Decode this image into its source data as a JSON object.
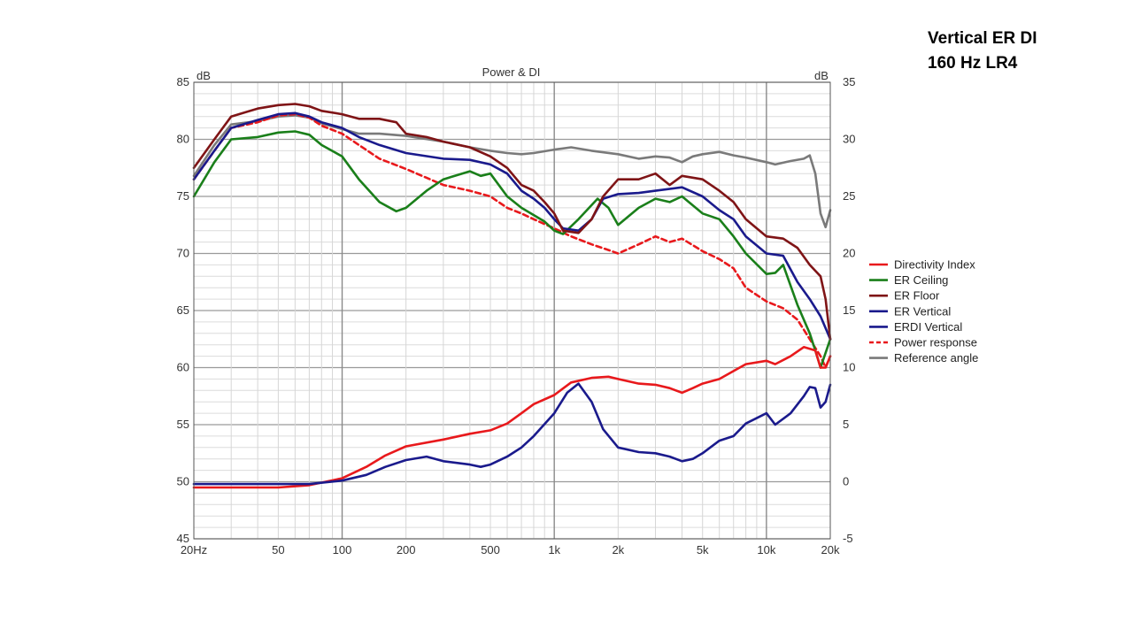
{
  "slide": {
    "title_line1": "Vertical ER DI",
    "title_line2": "160 Hz LR4"
  },
  "chart_data": {
    "type": "line",
    "title": "Power & DI",
    "xlabel": "",
    "ylabel_left": "dB",
    "ylabel_right": "dB",
    "x_scale": "log",
    "xlim": [
      20,
      20000
    ],
    "ylim_left": [
      45,
      85
    ],
    "ylim_right": [
      -5,
      35
    ],
    "x_ticks": [
      {
        "v": 20,
        "label": "20Hz"
      },
      {
        "v": 50,
        "label": "50"
      },
      {
        "v": 100,
        "label": "100"
      },
      {
        "v": 200,
        "label": "200"
      },
      {
        "v": 500,
        "label": "500"
      },
      {
        "v": 1000,
        "label": "1k"
      },
      {
        "v": 2000,
        "label": "2k"
      },
      {
        "v": 5000,
        "label": "5k"
      },
      {
        "v": 10000,
        "label": "10k"
      },
      {
        "v": 20000,
        "label": "20k"
      }
    ],
    "y_ticks_left": [
      45,
      50,
      55,
      60,
      65,
      70,
      75,
      80,
      85
    ],
    "y_ticks_right": [
      -5,
      0,
      5,
      10,
      15,
      20,
      25,
      30,
      35
    ],
    "grid": true,
    "legend_position": "right",
    "series": [
      {
        "name": "Directivity Index",
        "color": "#e8191c",
        "dash": false,
        "axis": "right",
        "points": [
          [
            20,
            -0.5
          ],
          [
            50,
            -0.5
          ],
          [
            70,
            -0.3
          ],
          [
            100,
            0.3
          ],
          [
            130,
            1.3
          ],
          [
            160,
            2.3
          ],
          [
            200,
            3.1
          ],
          [
            300,
            3.7
          ],
          [
            400,
            4.2
          ],
          [
            500,
            4.5
          ],
          [
            600,
            5.1
          ],
          [
            700,
            6.0
          ],
          [
            800,
            6.8
          ],
          [
            1000,
            7.6
          ],
          [
            1200,
            8.7
          ],
          [
            1500,
            9.1
          ],
          [
            1800,
            9.2
          ],
          [
            2000,
            9.0
          ],
          [
            2500,
            8.6
          ],
          [
            3000,
            8.5
          ],
          [
            3500,
            8.2
          ],
          [
            4000,
            7.8
          ],
          [
            4500,
            8.2
          ],
          [
            5000,
            8.6
          ],
          [
            6000,
            9.0
          ],
          [
            7000,
            9.7
          ],
          [
            8000,
            10.3
          ],
          [
            10000,
            10.6
          ],
          [
            11000,
            10.3
          ],
          [
            13000,
            11.0
          ],
          [
            15000,
            11.8
          ],
          [
            17000,
            11.5
          ],
          [
            18000,
            10.0
          ],
          [
            19000,
            10.0
          ],
          [
            20000,
            11.0
          ]
        ]
      },
      {
        "name": "ER Ceiling",
        "color": "#1a7f1a",
        "dash": false,
        "axis": "left",
        "points": [
          [
            20,
            75
          ],
          [
            25,
            78
          ],
          [
            30,
            80
          ],
          [
            40,
            80.2
          ],
          [
            50,
            80.6
          ],
          [
            60,
            80.7
          ],
          [
            70,
            80.4
          ],
          [
            80,
            79.5
          ],
          [
            100,
            78.5
          ],
          [
            120,
            76.5
          ],
          [
            150,
            74.5
          ],
          [
            180,
            73.7
          ],
          [
            200,
            74
          ],
          [
            250,
            75.5
          ],
          [
            300,
            76.5
          ],
          [
            400,
            77.2
          ],
          [
            450,
            76.8
          ],
          [
            500,
            77
          ],
          [
            600,
            75
          ],
          [
            700,
            74
          ],
          [
            900,
            72.8
          ],
          [
            1000,
            72
          ],
          [
            1100,
            71.7
          ],
          [
            1300,
            73
          ],
          [
            1600,
            74.8
          ],
          [
            1800,
            74
          ],
          [
            2000,
            72.5
          ],
          [
            2500,
            74
          ],
          [
            3000,
            74.8
          ],
          [
            3500,
            74.5
          ],
          [
            4000,
            75
          ],
          [
            5000,
            73.5
          ],
          [
            6000,
            73
          ],
          [
            7000,
            71.5
          ],
          [
            8000,
            70
          ],
          [
            10000,
            68.2
          ],
          [
            11000,
            68.3
          ],
          [
            12000,
            69
          ],
          [
            14000,
            65.5
          ],
          [
            16000,
            63
          ],
          [
            17000,
            61.5
          ],
          [
            18000,
            60
          ],
          [
            20000,
            62.5
          ]
        ]
      },
      {
        "name": "ER Floor",
        "color": "#7f1416",
        "dash": false,
        "axis": "left",
        "points": [
          [
            20,
            77.5
          ],
          [
            25,
            80
          ],
          [
            30,
            82
          ],
          [
            40,
            82.7
          ],
          [
            50,
            83
          ],
          [
            60,
            83.1
          ],
          [
            70,
            82.9
          ],
          [
            80,
            82.5
          ],
          [
            100,
            82.2
          ],
          [
            120,
            81.8
          ],
          [
            150,
            81.8
          ],
          [
            180,
            81.5
          ],
          [
            200,
            80.5
          ],
          [
            250,
            80.2
          ],
          [
            300,
            79.8
          ],
          [
            400,
            79.3
          ],
          [
            500,
            78.5
          ],
          [
            600,
            77.5
          ],
          [
            700,
            76
          ],
          [
            800,
            75.5
          ],
          [
            900,
            74.5
          ],
          [
            1000,
            73.5
          ],
          [
            1100,
            72
          ],
          [
            1300,
            71.8
          ],
          [
            1500,
            73
          ],
          [
            1700,
            75
          ],
          [
            2000,
            76.5
          ],
          [
            2500,
            76.5
          ],
          [
            3000,
            77
          ],
          [
            3500,
            76
          ],
          [
            4000,
            76.8
          ],
          [
            5000,
            76.5
          ],
          [
            6000,
            75.5
          ],
          [
            7000,
            74.5
          ],
          [
            8000,
            73
          ],
          [
            10000,
            71.5
          ],
          [
            12000,
            71.3
          ],
          [
            14000,
            70.5
          ],
          [
            16000,
            69
          ],
          [
            18000,
            68
          ],
          [
            19000,
            66
          ],
          [
            20000,
            62.5
          ]
        ]
      },
      {
        "name": "ER Vertical",
        "color": "#1a1a8c",
        "dash": false,
        "axis": "left",
        "points": [
          [
            20,
            76.5
          ],
          [
            25,
            79
          ],
          [
            30,
            81
          ],
          [
            40,
            81.7
          ],
          [
            50,
            82.2
          ],
          [
            60,
            82.3
          ],
          [
            70,
            82
          ],
          [
            80,
            81.5
          ],
          [
            100,
            81
          ],
          [
            120,
            80.2
          ],
          [
            150,
            79.5
          ],
          [
            200,
            78.8
          ],
          [
            300,
            78.3
          ],
          [
            400,
            78.2
          ],
          [
            500,
            77.8
          ],
          [
            600,
            77
          ],
          [
            700,
            75.5
          ],
          [
            800,
            74.8
          ],
          [
            900,
            74
          ],
          [
            1000,
            73
          ],
          [
            1100,
            72.2
          ],
          [
            1300,
            72
          ],
          [
            1500,
            73
          ],
          [
            1700,
            74.8
          ],
          [
            2000,
            75.2
          ],
          [
            2500,
            75.3
          ],
          [
            3000,
            75.5
          ],
          [
            4000,
            75.8
          ],
          [
            5000,
            75
          ],
          [
            6000,
            73.8
          ],
          [
            7000,
            73
          ],
          [
            8000,
            71.5
          ],
          [
            10000,
            70
          ],
          [
            12000,
            69.8
          ],
          [
            14000,
            67.5
          ],
          [
            16000,
            66
          ],
          [
            18000,
            64.5
          ],
          [
            20000,
            62.5
          ]
        ]
      },
      {
        "name": "ERDI Vertical",
        "color": "#1a1a8c",
        "dash": false,
        "axis": "right",
        "points": [
          [
            20,
            -0.2
          ],
          [
            70,
            -0.2
          ],
          [
            100,
            0.1
          ],
          [
            130,
            0.6
          ],
          [
            160,
            1.3
          ],
          [
            200,
            1.9
          ],
          [
            250,
            2.2
          ],
          [
            300,
            1.8
          ],
          [
            400,
            1.5
          ],
          [
            450,
            1.3
          ],
          [
            500,
            1.5
          ],
          [
            600,
            2.2
          ],
          [
            700,
            3.0
          ],
          [
            800,
            4.0
          ],
          [
            1000,
            6.0
          ],
          [
            1150,
            7.8
          ],
          [
            1300,
            8.6
          ],
          [
            1500,
            7.0
          ],
          [
            1700,
            4.6
          ],
          [
            2000,
            3.0
          ],
          [
            2500,
            2.6
          ],
          [
            3000,
            2.5
          ],
          [
            3500,
            2.2
          ],
          [
            4000,
            1.8
          ],
          [
            4500,
            2.0
          ],
          [
            5000,
            2.5
          ],
          [
            6000,
            3.6
          ],
          [
            7000,
            4.0
          ],
          [
            8000,
            5.1
          ],
          [
            10000,
            6.0
          ],
          [
            11000,
            5.0
          ],
          [
            13000,
            6.0
          ],
          [
            15000,
            7.5
          ],
          [
            16000,
            8.3
          ],
          [
            17000,
            8.2
          ],
          [
            18000,
            6.5
          ],
          [
            19000,
            7.0
          ],
          [
            20000,
            8.5
          ]
        ]
      },
      {
        "name": "Power response",
        "color": "#e8191c",
        "dash": true,
        "axis": "left",
        "points": [
          [
            20,
            76.5
          ],
          [
            25,
            79
          ],
          [
            30,
            81
          ],
          [
            40,
            81.5
          ],
          [
            50,
            82.1
          ],
          [
            60,
            82.2
          ],
          [
            70,
            81.9
          ],
          [
            80,
            81.2
          ],
          [
            100,
            80.5
          ],
          [
            120,
            79.5
          ],
          [
            150,
            78.3
          ],
          [
            200,
            77.4
          ],
          [
            300,
            76
          ],
          [
            400,
            75.5
          ],
          [
            500,
            75
          ],
          [
            600,
            74
          ],
          [
            700,
            73.5
          ],
          [
            800,
            73
          ],
          [
            1000,
            72.2
          ],
          [
            1200,
            71.5
          ],
          [
            1500,
            70.8
          ],
          [
            1800,
            70.3
          ],
          [
            2000,
            70
          ],
          [
            2500,
            70.8
          ],
          [
            3000,
            71.5
          ],
          [
            3500,
            71
          ],
          [
            4000,
            71.3
          ],
          [
            5000,
            70.2
          ],
          [
            6000,
            69.5
          ],
          [
            7000,
            68.7
          ],
          [
            8000,
            67
          ],
          [
            10000,
            65.8
          ],
          [
            12000,
            65.2
          ],
          [
            14000,
            64.2
          ],
          [
            16000,
            62.5
          ],
          [
            18000,
            61
          ],
          [
            19000,
            60
          ],
          [
            20000,
            61
          ]
        ]
      },
      {
        "name": "Reference angle",
        "color": "#7a7a7a",
        "dash": false,
        "axis": "left",
        "points": [
          [
            20,
            76.8
          ],
          [
            25,
            79.5
          ],
          [
            30,
            81.3
          ],
          [
            40,
            81.6
          ],
          [
            50,
            82
          ],
          [
            60,
            82.1
          ],
          [
            70,
            81.9
          ],
          [
            80,
            81.4
          ],
          [
            100,
            80.9
          ],
          [
            120,
            80.5
          ],
          [
            150,
            80.5
          ],
          [
            200,
            80.3
          ],
          [
            300,
            79.8
          ],
          [
            400,
            79.3
          ],
          [
            500,
            79
          ],
          [
            600,
            78.8
          ],
          [
            700,
            78.7
          ],
          [
            800,
            78.8
          ],
          [
            1000,
            79.1
          ],
          [
            1200,
            79.3
          ],
          [
            1500,
            79
          ],
          [
            2000,
            78.7
          ],
          [
            2500,
            78.3
          ],
          [
            3000,
            78.5
          ],
          [
            3500,
            78.4
          ],
          [
            4000,
            78
          ],
          [
            4500,
            78.5
          ],
          [
            5000,
            78.7
          ],
          [
            6000,
            78.9
          ],
          [
            7000,
            78.6
          ],
          [
            8000,
            78.4
          ],
          [
            10000,
            78
          ],
          [
            11000,
            77.8
          ],
          [
            13000,
            78.1
          ],
          [
            15000,
            78.3
          ],
          [
            16000,
            78.6
          ],
          [
            17000,
            77
          ],
          [
            18000,
            73.5
          ],
          [
            19000,
            72.3
          ],
          [
            20000,
            73.8
          ]
        ]
      }
    ]
  }
}
